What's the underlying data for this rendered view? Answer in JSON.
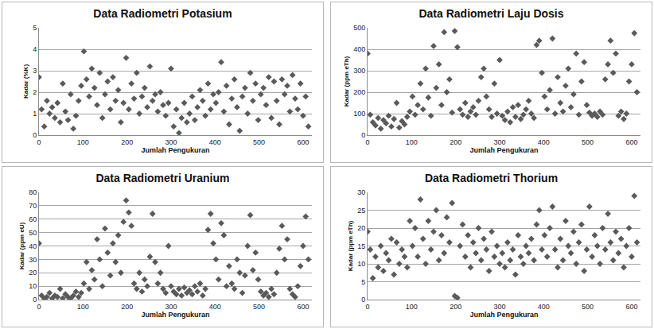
{
  "chart_data": [
    {
      "type": "scatter",
      "title": "Data Radiometri Potasium",
      "x_label": "Jumlah Pengukuran",
      "y_label": "Kadar (%K)",
      "x": [
        0,
        6,
        12,
        18,
        24,
        30,
        36,
        42,
        48,
        54,
        60,
        66,
        72,
        78,
        84,
        90,
        96,
        102,
        108,
        114,
        120,
        126,
        132,
        138,
        144,
        150,
        156,
        162,
        168,
        174,
        180,
        186,
        192,
        198,
        204,
        210,
        216,
        222,
        228,
        234,
        240,
        246,
        252,
        258,
        264,
        270,
        276,
        282,
        288,
        294,
        300,
        306,
        312,
        318,
        324,
        330,
        336,
        342,
        348,
        354,
        360,
        366,
        372,
        378,
        384,
        390,
        396,
        402,
        408,
        414,
        420,
        426,
        432,
        438,
        444,
        450,
        456,
        462,
        468,
        474,
        480,
        486,
        492,
        498,
        504,
        510,
        516,
        522,
        528,
        534,
        540,
        546,
        552,
        558,
        564,
        570,
        576,
        582,
        588,
        594,
        600,
        606,
        612
      ],
      "values": [
        2.7,
        1.2,
        0.4,
        1.6,
        1.0,
        1.3,
        0.8,
        1.5,
        0.6,
        2.4,
        1.1,
        0.7,
        1.9,
        0.3,
        0.9,
        1.6,
        2.3,
        3.9,
        2.6,
        1.8,
        3.1,
        2.2,
        1.4,
        2.9,
        0.8,
        1.9,
        2.5,
        1.2,
        2.7,
        1.6,
        2.1,
        0.6,
        1.5,
        3.6,
        1.2,
        2.4,
        1.7,
        2.9,
        1.0,
        1.8,
        2.2,
        1.3,
        3.2,
        1.6,
        1.9,
        1.1,
        2.0,
        1.4,
        0.9,
        1.5,
        3.1,
        0.4,
        1.2,
        0.1,
        0.8,
        1.5,
        0.6,
        1.0,
        1.8,
        0.7,
        1.3,
        2.1,
        1.6,
        0.9,
        2.4,
        1.2,
        1.9,
        1.5,
        2.0,
        3.4,
        1.1,
        2.3,
        0.5,
        1.7,
        2.6,
        1.3,
        0.2,
        1.8,
        2.2,
        1.0,
        2.9,
        1.6,
        2.4,
        0.7,
        1.9,
        2.2,
        1.4,
        2.7,
        0.8,
        2.5,
        1.6,
        0.5,
        2.6,
        1.9,
        2.3,
        1.1,
        2.8,
        1.7,
        1.2,
        2.4,
        0.9,
        1.8,
        0.4
      ],
      "xlim": [
        0,
        620
      ],
      "xticks": [
        0,
        100,
        200,
        300,
        400,
        500,
        600
      ],
      "ylim": [
        0,
        5
      ],
      "yticks": [
        0,
        1,
        2,
        3,
        4,
        5
      ],
      "grid": true,
      "color": "#5a5a5a",
      "marker": "diamond"
    },
    {
      "type": "scatter",
      "title": "Data Radiometri Laju Dosis",
      "x_label": "Jumlah Pengukuran",
      "y_label": "Kadar (ppm eTh)",
      "x": [
        0,
        6,
        12,
        18,
        24,
        30,
        36,
        42,
        48,
        54,
        60,
        66,
        72,
        78,
        84,
        90,
        96,
        102,
        108,
        114,
        120,
        126,
        132,
        138,
        144,
        150,
        156,
        162,
        168,
        174,
        180,
        186,
        192,
        198,
        204,
        210,
        216,
        222,
        228,
        234,
        240,
        246,
        252,
        258,
        264,
        270,
        276,
        282,
        288,
        294,
        300,
        306,
        312,
        318,
        324,
        330,
        336,
        342,
        348,
        354,
        360,
        366,
        372,
        378,
        384,
        390,
        396,
        402,
        408,
        414,
        420,
        426,
        432,
        438,
        444,
        450,
        456,
        462,
        468,
        474,
        480,
        486,
        492,
        498,
        504,
        510,
        516,
        522,
        528,
        534,
        540,
        546,
        552,
        558,
        564,
        570,
        576,
        582,
        588,
        594,
        600,
        606,
        612
      ],
      "values": [
        380,
        95,
        60,
        45,
        80,
        30,
        70,
        55,
        90,
        40,
        75,
        150,
        35,
        65,
        50,
        85,
        110,
        180,
        95,
        140,
        240,
        120,
        310,
        175,
        90,
        415,
        220,
        330,
        140,
        480,
        200,
        260,
        105,
        485,
        410,
        120,
        95,
        150,
        85,
        110,
        130,
        95,
        160,
        270,
        310,
        180,
        120,
        85,
        240,
        100,
        350,
        90,
        70,
        110,
        60,
        130,
        85,
        140,
        75,
        95,
        120,
        160,
        100,
        80,
        420,
        440,
        290,
        180,
        120,
        210,
        450,
        100,
        270,
        150,
        110,
        230,
        310,
        130,
        190,
        380,
        95,
        250,
        340,
        140,
        105,
        90,
        100,
        85,
        110,
        95,
        260,
        330,
        440,
        290,
        380,
        90,
        110,
        75,
        100,
        250,
        330,
        475,
        200
      ],
      "xlim": [
        0,
        620
      ],
      "xticks": [
        0,
        100,
        200,
        300,
        400,
        500,
        600
      ],
      "ylim": [
        0,
        500
      ],
      "yticks": [
        0,
        100,
        200,
        300,
        400,
        500
      ],
      "grid": true,
      "color": "#5a5a5a",
      "marker": "diamond"
    },
    {
      "type": "scatter",
      "title": "Data Radiometri Uranium",
      "x_label": "Jumlah Pengukuran",
      "y_label": "Kadar (ppm eU)",
      "x": [
        0,
        6,
        12,
        18,
        24,
        30,
        36,
        42,
        48,
        54,
        60,
        66,
        72,
        78,
        84,
        90,
        96,
        102,
        108,
        114,
        120,
        126,
        132,
        138,
        144,
        150,
        156,
        162,
        168,
        174,
        180,
        186,
        192,
        198,
        204,
        210,
        216,
        222,
        228,
        234,
        240,
        246,
        252,
        258,
        264,
        270,
        276,
        282,
        288,
        294,
        300,
        306,
        312,
        318,
        324,
        330,
        336,
        342,
        348,
        354,
        360,
        366,
        372,
        378,
        384,
        390,
        396,
        402,
        408,
        414,
        420,
        426,
        432,
        438,
        444,
        450,
        456,
        462,
        468,
        474,
        480,
        486,
        492,
        498,
        504,
        510,
        516,
        522,
        528,
        534,
        540,
        546,
        552,
        558,
        564,
        570,
        576,
        582,
        588,
        594,
        600,
        606,
        612
      ],
      "values": [
        42,
        3,
        1,
        2,
        5,
        1,
        3,
        2,
        8,
        1,
        4,
        2,
        1,
        3,
        6,
        2,
        5,
        12,
        28,
        8,
        22,
        15,
        45,
        30,
        10,
        53,
        35,
        18,
        42,
        28,
        48,
        20,
        58,
        74,
        65,
        55,
        12,
        8,
        20,
        6,
        15,
        10,
        32,
        64,
        28,
        12,
        20,
        8,
        5,
        40,
        10,
        6,
        4,
        8,
        3,
        9,
        5,
        7,
        4,
        10,
        6,
        12,
        3,
        8,
        52,
        64,
        42,
        30,
        15,
        57,
        48,
        10,
        25,
        12,
        8,
        30,
        20,
        5,
        18,
        40,
        63,
        22,
        35,
        15,
        6,
        3,
        5,
        2,
        8,
        4,
        20,
        38,
        55,
        30,
        45,
        8,
        4,
        2,
        10,
        25,
        40,
        62,
        30
      ],
      "xlim": [
        0,
        620
      ],
      "xticks": [
        0,
        100,
        200,
        300,
        400,
        500,
        600
      ],
      "ylim": [
        0,
        80
      ],
      "yticks": [
        0,
        10,
        20,
        30,
        40,
        50,
        60,
        70,
        80
      ],
      "grid": true,
      "color": "#5a5a5a",
      "marker": "diamond"
    },
    {
      "type": "scatter",
      "title": "Data Radiometri Thorium",
      "x_label": "Jumlah Pengukuran",
      "y_label": "Kadar (ppm eTh)",
      "x": [
        0,
        6,
        12,
        18,
        24,
        30,
        36,
        42,
        48,
        54,
        60,
        66,
        72,
        78,
        84,
        90,
        96,
        102,
        108,
        114,
        120,
        126,
        132,
        138,
        144,
        150,
        156,
        162,
        168,
        174,
        180,
        186,
        192,
        198,
        204,
        210,
        216,
        222,
        228,
        234,
        240,
        246,
        252,
        258,
        264,
        270,
        276,
        282,
        288,
        294,
        300,
        306,
        312,
        318,
        324,
        330,
        336,
        342,
        348,
        354,
        360,
        366,
        372,
        378,
        384,
        390,
        396,
        402,
        408,
        414,
        420,
        426,
        432,
        438,
        444,
        450,
        456,
        462,
        468,
        474,
        480,
        486,
        492,
        498,
        504,
        510,
        516,
        522,
        528,
        534,
        540,
        546,
        552,
        558,
        564,
        570,
        576,
        582,
        588,
        594,
        600,
        606,
        612
      ],
      "values": [
        19,
        14,
        6,
        12,
        9,
        15,
        8,
        13,
        11,
        17,
        7,
        16,
        10,
        14,
        12,
        9,
        22,
        15,
        20,
        12,
        28,
        17,
        10,
        22,
        14,
        19,
        25,
        11,
        18,
        13,
        23,
        16,
        27,
        1,
        0.5,
        15,
        21,
        12,
        18,
        9,
        16,
        13,
        20,
        11,
        17,
        14,
        8,
        19,
        12,
        15,
        10,
        13,
        9,
        16,
        11,
        14,
        7,
        18,
        12,
        10,
        15,
        13,
        17,
        11,
        21,
        25,
        14,
        18,
        12,
        20,
        26,
        14,
        9,
        17,
        11,
        22,
        15,
        13,
        19,
        10,
        16,
        21,
        8,
        14,
        26,
        12,
        18,
        15,
        10,
        20,
        14,
        24,
        16,
        11,
        19,
        13,
        17,
        9,
        15,
        20,
        12,
        29,
        16
      ],
      "xlim": [
        0,
        620
      ],
      "xticks": [
        0,
        100,
        200,
        300,
        400,
        500,
        600
      ],
      "ylim": [
        0,
        30
      ],
      "yticks": [
        0,
        5,
        10,
        15,
        20,
        25,
        30
      ],
      "grid": true,
      "color": "#5a5a5a",
      "marker": "diamond"
    }
  ]
}
